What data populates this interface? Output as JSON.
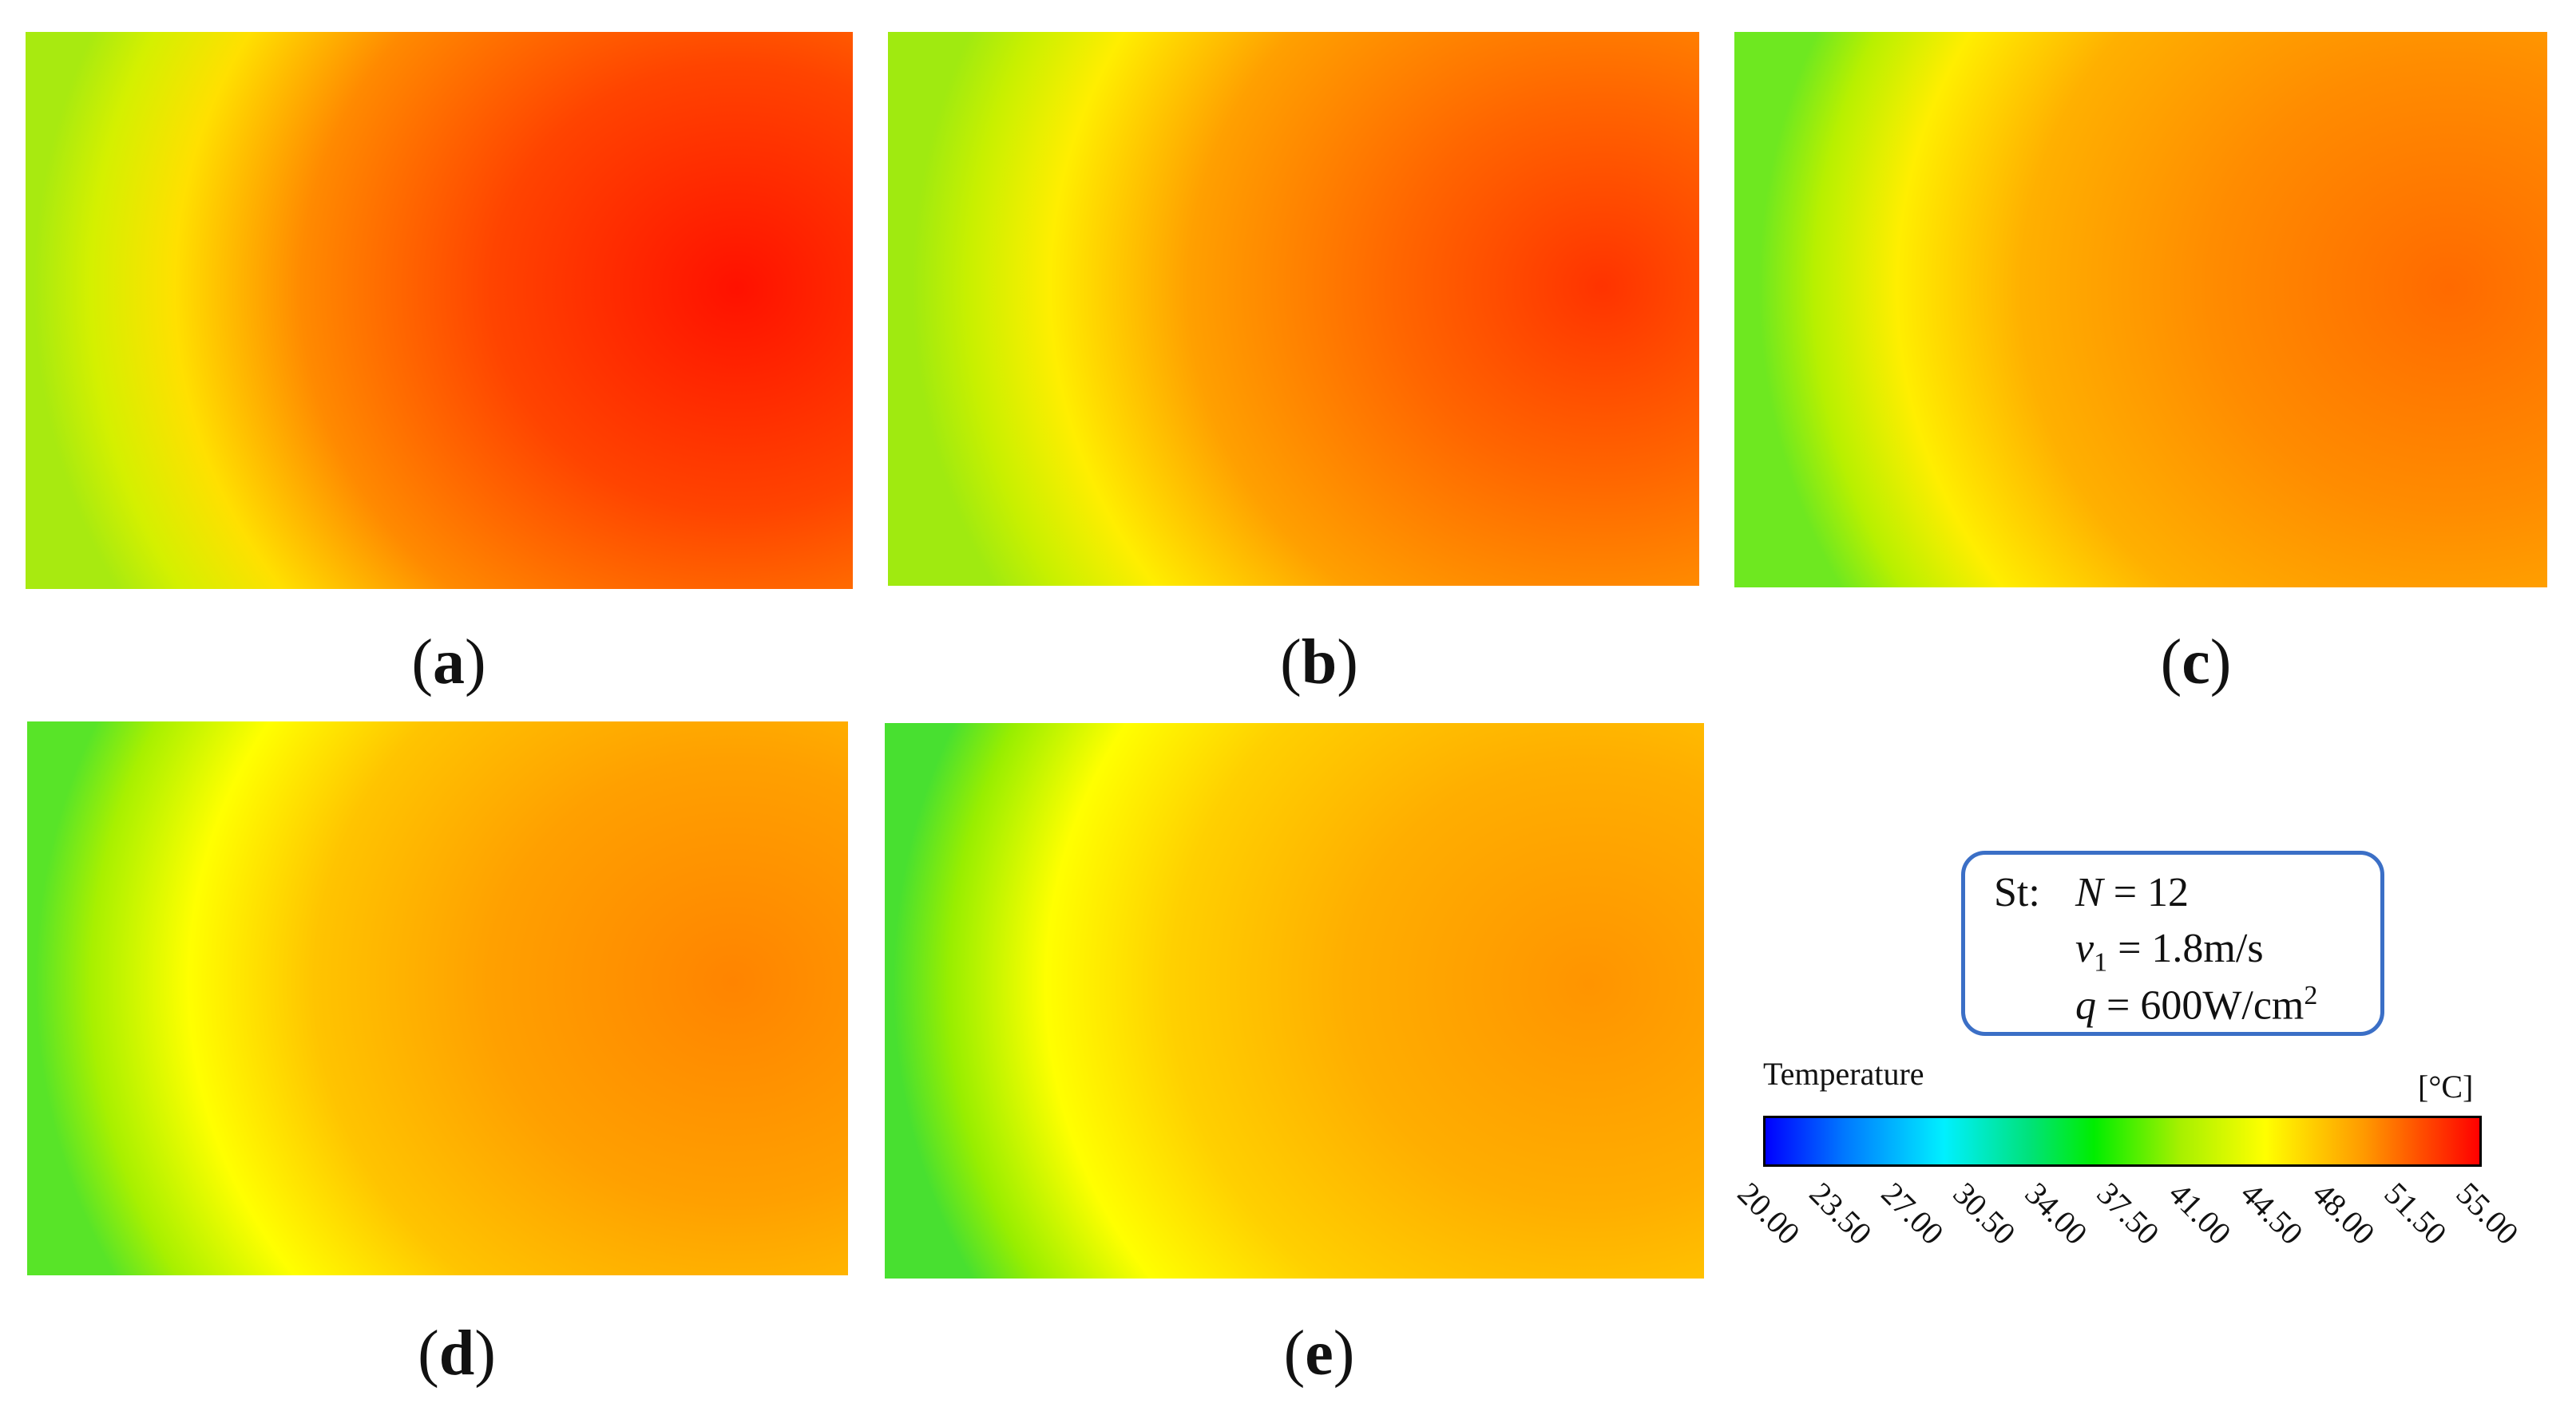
{
  "panels": [
    {
      "label": "a",
      "hotspot_value": 55.0
    },
    {
      "label": "b",
      "hotspot_value": 53.0
    },
    {
      "label": "c",
      "hotspot_value": 51.5
    },
    {
      "label": "d",
      "hotspot_value": 50.5
    },
    {
      "label": "e",
      "hotspot_value": 49.5
    }
  ],
  "info": {
    "prefix": "St:",
    "line1_var": "N",
    "line1_rest": " = 12",
    "line2_var": "v",
    "line2_sub": "1",
    "line2_rest": " = 1.8m/s",
    "line3_var": "q",
    "line3_rest": " = 600W/cm",
    "line3_sup": "2"
  },
  "legend": {
    "title": "Temperature",
    "unit": "[°C]",
    "ticks": [
      "20.00",
      "23.50",
      "27.00",
      "30.50",
      "34.00",
      "37.50",
      "41.00",
      "44.50",
      "48.00",
      "51.50",
      "55.00"
    ]
  },
  "colors": {
    "box_border": "#3b6fc6",
    "cold": "#0000ff",
    "hot": "#ff0000"
  }
}
